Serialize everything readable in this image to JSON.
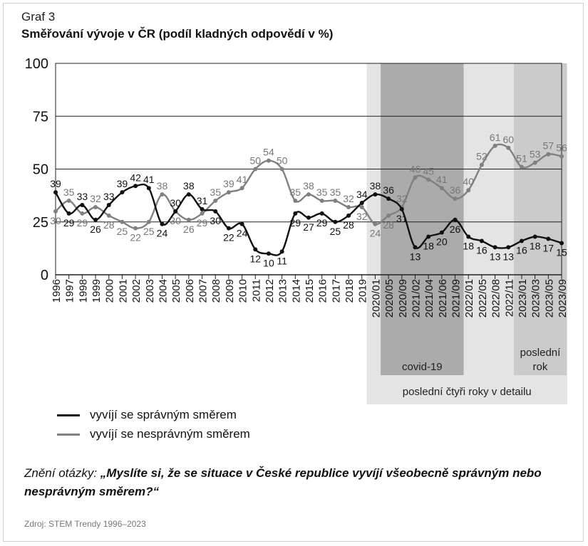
{
  "header": {
    "graf_label": "Graf 3",
    "title": "Směřování vývoje v ČR (podíl kladných odpovědí v %)"
  },
  "chart_data": {
    "type": "line",
    "ylim": [
      0,
      100
    ],
    "yticks": [
      0,
      25,
      50,
      75,
      100
    ],
    "categories": [
      "1996",
      "1997",
      "1998",
      "1999",
      "2000",
      "2001",
      "2002",
      "2003",
      "2004",
      "2005",
      "2006",
      "2007",
      "2008",
      "2009",
      "2010",
      "2011",
      "2012",
      "2013",
      "2014",
      "2015",
      "2016",
      "2017",
      "2018",
      "2019",
      "2020/01",
      "2020/05",
      "2020/09",
      "2021/02",
      "2021/04",
      "2021/06",
      "2021/09",
      "2022/01",
      "2022/05",
      "2022/08",
      "2022/11",
      "2023/01",
      "2023/03",
      "2023/05",
      "2023/09"
    ],
    "series": [
      {
        "name": "vyvíjí se správným směrem",
        "color": "#111111",
        "values": [
          39,
          29,
          33,
          26,
          33,
          39,
          42,
          41,
          24,
          30,
          38,
          31,
          30,
          22,
          24,
          12,
          10,
          11,
          29,
          27,
          29,
          25,
          28,
          34,
          38,
          36,
          31,
          13,
          18,
          20,
          26,
          18,
          16,
          13,
          13,
          16,
          18,
          17,
          15
        ],
        "labels": [
          "39",
          "29",
          "33",
          "26",
          "33",
          "39",
          "42",
          "41",
          "24",
          "30",
          "38",
          "31",
          "30",
          "22",
          "24",
          "12",
          "10",
          "11",
          "29",
          "27",
          "29",
          "25",
          "28",
          "34",
          "38",
          "36",
          "31",
          "13",
          "18",
          "20",
          "26",
          "18",
          "16",
          "13",
          "13",
          "16",
          "18",
          "17",
          "15"
        ]
      },
      {
        "name": "vyvíjí se nesprávným směrem",
        "color": "#808080",
        "values": [
          30,
          35,
          29,
          32,
          28,
          25,
          22,
          25,
          38,
          30,
          26,
          29,
          35,
          39,
          41,
          50,
          54,
          50,
          35,
          38,
          35,
          35,
          32,
          32,
          24,
          28,
          32,
          46,
          45,
          41,
          36,
          40,
          52,
          61,
          60,
          51,
          53,
          57,
          56
        ],
        "labels": [
          "30",
          "35",
          "29",
          "32",
          "28",
          "25",
          "22",
          "25",
          "38",
          "30",
          "26",
          "29",
          "35",
          "39",
          "41",
          "50",
          "54",
          "50",
          "35",
          "38",
          "35",
          "35",
          "32",
          "32",
          "24",
          "28",
          "32",
          "46",
          "45",
          "41",
          "36",
          "40",
          "52",
          "61",
          "60",
          "51",
          "53",
          "57",
          "56"
        ]
      }
    ],
    "bands": [
      {
        "name": "detail",
        "label": "poslední čtyři roky v detailu",
        "from": "2020/01",
        "to": "2023/09"
      },
      {
        "name": "covid",
        "label": "covid-19",
        "from": "2020/05",
        "to": "2021/09"
      },
      {
        "name": "lastyear",
        "label_line1": "poslední",
        "label_line2": "rok",
        "from": "2023/01",
        "to": "2023/09"
      }
    ]
  },
  "legend": {
    "correct": "vyvíjí se správným směrem",
    "incorrect": "vyvíjí se nesprávným směrem"
  },
  "question": {
    "prefix": "Znění otázky: ",
    "text": "„Myslíte si, že se situace v České republice vyvíjí všeobecně správným nebo nesprávným směrem?“"
  },
  "source": "Zdroj: STEM Trendy 1996–2023"
}
